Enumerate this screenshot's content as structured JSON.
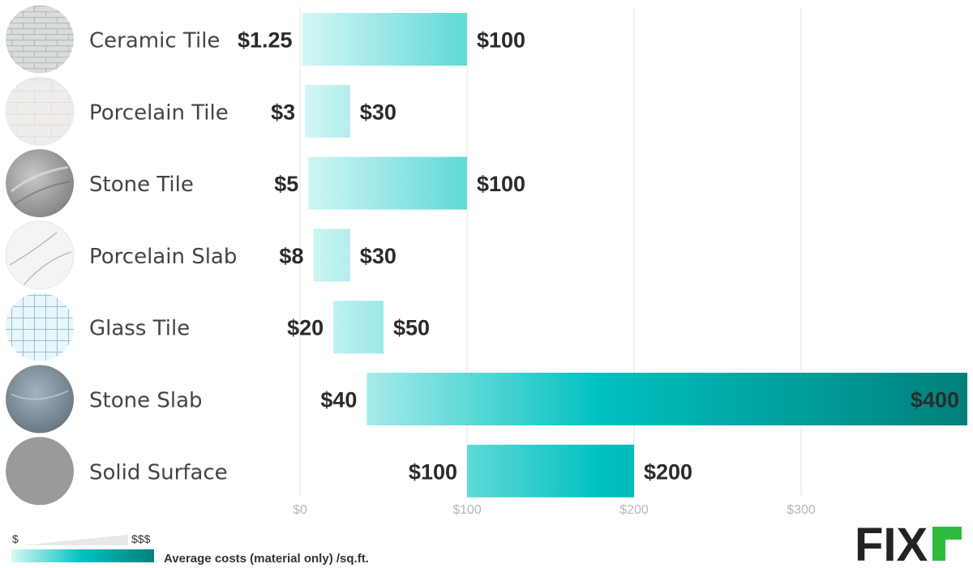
{
  "chart_data": {
    "type": "bar",
    "orientation": "horizontal-range",
    "categories": [
      "Ceramic Tile",
      "Porcelain Tile",
      "Stone Tile",
      "Porcelain Slab",
      "Glass Tile",
      "Stone Slab",
      "Solid Surface"
    ],
    "series": [
      {
        "low": [
          1.25,
          3,
          5,
          8,
          20,
          40,
          100
        ],
        "high": [
          100,
          30,
          100,
          30,
          50,
          400,
          200
        ]
      }
    ],
    "low_labels": [
      "$1.25",
      "$3",
      "$5",
      "$8",
      "$20",
      "$40",
      "$100"
    ],
    "high_labels": [
      "$100",
      "$30",
      "$100",
      "$30",
      "$50",
      "$400",
      "$200"
    ],
    "x_ticks": [
      0,
      100,
      200,
      300
    ],
    "x_tick_labels": [
      "$0",
      "$100",
      "$200",
      "$300"
    ],
    "xlim": [
      0,
      400
    ],
    "grid": true,
    "icons": [
      "ceramic-tile-swatch",
      "porcelain-tile-swatch",
      "stone-tile-swatch",
      "porcelain-slab-swatch",
      "glass-tile-swatch",
      "stone-slab-swatch",
      "solid-surface-swatch"
    ],
    "colors": {
      "gradient_start": "#d6f7f6",
      "gradient_mid": "#00c1c0",
      "gradient_end": "#00807c",
      "grid": "#e4e4e4",
      "tick": "#b8b8b8"
    }
  },
  "legend": {
    "low_symbol": "$",
    "high_symbol": "$$$",
    "title": "Average costs (material only) /sq.ft."
  },
  "logo": {
    "text": "FIX",
    "accent": "r",
    "accent_color": "#2dbb3e"
  }
}
